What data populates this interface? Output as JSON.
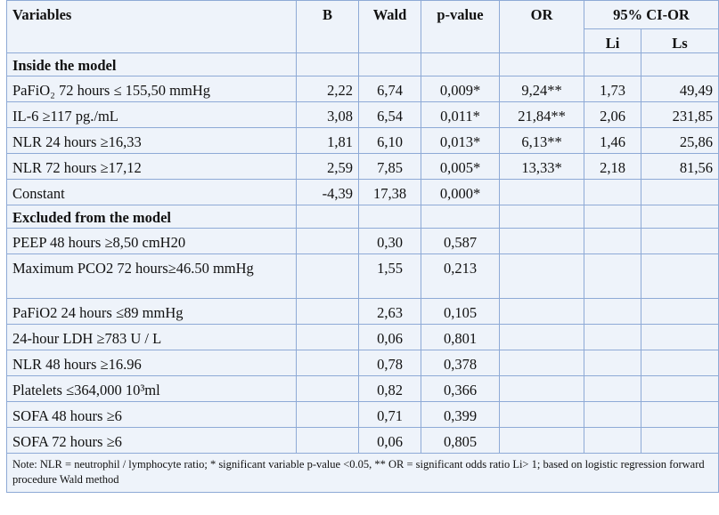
{
  "headers": {
    "variables": "Variables",
    "b": "B",
    "wald": "Wald",
    "pvalue": "p-value",
    "or": "OR",
    "ci": "95% CI-OR",
    "li": "Li",
    "ls": "Ls"
  },
  "sections": {
    "inside": "Inside the model",
    "excluded": "Excluded from the model"
  },
  "inside_rows": [
    {
      "variable": "PaFiO₂ 72 hours ≤ 155,50 mmHg",
      "b": "2,22",
      "wald": "6,74",
      "p": "0,009*",
      "or": "9,24**",
      "li": "1,73",
      "ls": "49,49"
    },
    {
      "variable": "IL-6 ≥117 pg./mL",
      "b": "3,08",
      "wald": "6,54",
      "p": "0,011*",
      "or": "21,84**",
      "li": "2,06",
      "ls": "231,85"
    },
    {
      "variable": "NLR 24 hours ≥16,33",
      "b": "1,81",
      "wald": "6,10",
      "p": "0,013*",
      "or": "6,13**",
      "li": "1,46",
      "ls": "25,86"
    },
    {
      "variable": "NLR 72 hours ≥17,12",
      "b": "2,59",
      "wald": "7,85",
      "p": "0,005*",
      "or": "13,33*",
      "li": "2,18",
      "ls": "81,56"
    },
    {
      "variable": "Constant",
      "b": "-4,39",
      "wald": "17,38",
      "p": "0,000*",
      "or": "",
      "li": "",
      "ls": ""
    }
  ],
  "excluded_rows": [
    {
      "variable": "PEEP 48 hours ≥8,50 cmH20",
      "wald": "0,30",
      "p": "0,587"
    },
    {
      "variable": "Maximum PCO2 72 hours≥46.50 mmHg",
      "wald": "1,55",
      "p": "0,213"
    },
    {
      "variable": "PaFiO2 24 hours ≤89 mmHg",
      "wald": "2,63",
      "p": "0,105"
    },
    {
      "variable": "24-hour LDH ≥783 U / L",
      "wald": "0,06",
      "p": "0,801"
    },
    {
      "variable": "NLR 48 hours ≥16.96",
      "wald": "0,78",
      "p": "0,378"
    },
    {
      "variable": "Platelets ≤364,000 10³ml",
      "wald": "0,82",
      "p": "0,366"
    },
    {
      "variable": "SOFA 48 hours ≥6",
      "wald": "0,71",
      "p": "0,399"
    },
    {
      "variable": "SOFA 72 hours ≥6",
      "wald": "0,06",
      "p": "0,805"
    }
  ],
  "note": "Note: NLR = neutrophil / lymphocyte ratio; * significant variable p-value <0.05, ** OR = significant odds ratio Li> 1; based on logistic regression forward procedure Wald method"
}
